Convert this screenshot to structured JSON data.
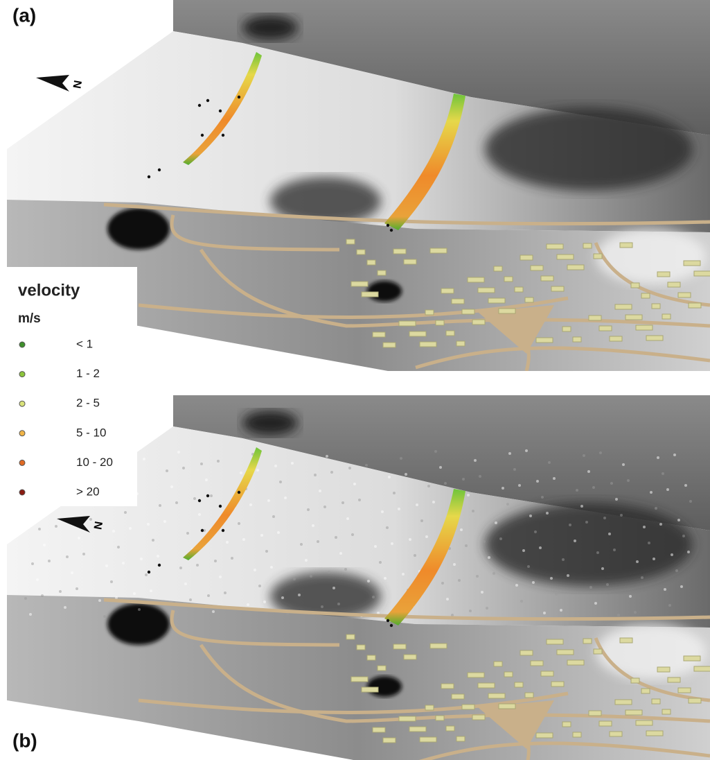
{
  "panels": [
    {
      "label": "(a)"
    },
    {
      "label": "(b)"
    }
  ],
  "north_label": "N",
  "legend": {
    "title": "velocity",
    "unit": "m/s",
    "items": [
      {
        "label": "< 1",
        "color": "#3f8f2c"
      },
      {
        "label": "1 - 2",
        "color": "#8cc43c"
      },
      {
        "label": "2 - 5",
        "color": "#d9e27a"
      },
      {
        "label": "5 - 10",
        "color": "#f0b447"
      },
      {
        "label": "10 - 20",
        "color": "#e06a24"
      },
      {
        "label": "> 20",
        "color": "#8a1c12"
      }
    ]
  }
}
